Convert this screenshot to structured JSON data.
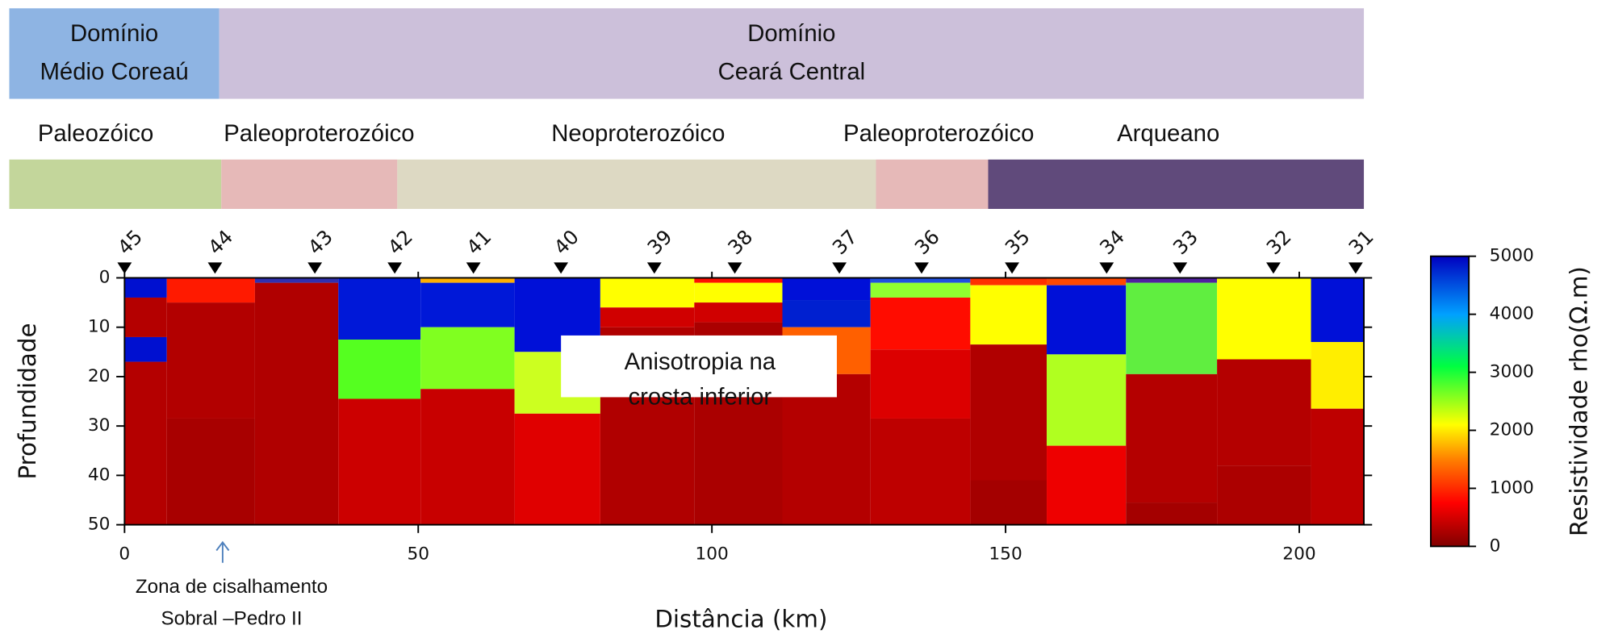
{
  "chart_data": {
    "type": "resistivity-section",
    "domains": [
      {
        "lines": [
          "Domínio",
          "Médio Coreaú"
        ],
        "color": "#8eb4e3"
      },
      {
        "lines": [
          "Domínio",
          "Ceará Central"
        ],
        "color": "#ccc0da"
      }
    ],
    "ages": [
      {
        "label": "Paleozóico",
        "color": "#c3d69b"
      },
      {
        "label": "Paleoproterozóico",
        "color": "#e6b9b8"
      },
      {
        "label": "Neoproterozóico",
        "color": "#ddd9c3"
      },
      {
        "label": "Paleoproterozóico",
        "color": "#e6b9b8"
      },
      {
        "label": "Arqueano",
        "color": "#604a7b"
      }
    ],
    "stations": [
      {
        "label": "45",
        "x": 0
      },
      {
        "label": "44",
        "x": 15.4
      },
      {
        "label": "43",
        "x": 32.4
      },
      {
        "label": "42",
        "x": 46
      },
      {
        "label": "41",
        "x": 59.4
      },
      {
        "label": "40",
        "x": 74.3
      },
      {
        "label": "39",
        "x": 90.2
      },
      {
        "label": "38",
        "x": 103.9
      },
      {
        "label": "37",
        "x": 121.7
      },
      {
        "label": "36",
        "x": 135.7
      },
      {
        "label": "35",
        "x": 151.1
      },
      {
        "label": "34",
        "x": 167.2
      },
      {
        "label": "33",
        "x": 179.7
      },
      {
        "label": "32",
        "x": 195.6
      },
      {
        "label": "31",
        "x": 209.6
      }
    ],
    "columns": [
      {
        "x0": 0,
        "x1": 7.2,
        "layers": [
          {
            "top": 0,
            "bottom": 4,
            "rho": 5000,
            "color": "#0010d0"
          },
          {
            "top": 4,
            "bottom": 12,
            "rho": 150,
            "color": "#b40000"
          },
          {
            "top": 12,
            "bottom": 17,
            "rho": 5000,
            "color": "#0010d0"
          },
          {
            "top": 17,
            "bottom": 50,
            "rho": 150,
            "color": "#b40000"
          }
        ]
      },
      {
        "x0": 7.2,
        "x1": 22.2,
        "layers": [
          {
            "top": 0,
            "bottom": 5,
            "rho": 800,
            "color": "#ff1a00"
          },
          {
            "top": 5,
            "bottom": 28.5,
            "rho": 150,
            "color": "#b20000"
          },
          {
            "top": 28.5,
            "bottom": 50,
            "rho": 100,
            "color": "#a80000"
          }
        ]
      },
      {
        "x0": 22.2,
        "x1": 36.4,
        "layers": [
          {
            "top": 0,
            "bottom": 1,
            "rho": 4500,
            "color": "#3030b0"
          },
          {
            "top": 1,
            "bottom": 50,
            "rho": 150,
            "color": "#b00000"
          }
        ]
      },
      {
        "x0": 36.4,
        "x1": 50.4,
        "layers": [
          {
            "top": 0,
            "bottom": 12.5,
            "rho": 5000,
            "color": "#0018d8"
          },
          {
            "top": 12.5,
            "bottom": 24.5,
            "rho": 3300,
            "color": "#55ff20"
          },
          {
            "top": 24.5,
            "bottom": 50,
            "rho": 300,
            "color": "#cc0000"
          }
        ]
      },
      {
        "x0": 50.4,
        "x1": 66.4,
        "layers": [
          {
            "top": 0,
            "bottom": 1,
            "rho": 1800,
            "color": "#ffb000"
          },
          {
            "top": 1,
            "bottom": 10,
            "rho": 5000,
            "color": "#0018d8"
          },
          {
            "top": 10,
            "bottom": 22.5,
            "rho": 2900,
            "color": "#80ff20"
          },
          {
            "top": 22.5,
            "bottom": 50,
            "rho": 300,
            "color": "#c80000"
          }
        ]
      },
      {
        "x0": 66.4,
        "x1": 81,
        "layers": [
          {
            "top": 0,
            "bottom": 15,
            "rho": 5000,
            "color": "#0010d8"
          },
          {
            "top": 15,
            "bottom": 27.5,
            "rho": 2400,
            "color": "#ccff20"
          },
          {
            "top": 27.5,
            "bottom": 50,
            "rho": 600,
            "color": "#e00000"
          }
        ]
      },
      {
        "x0": 81,
        "x1": 97,
        "layers": [
          {
            "top": 0,
            "bottom": 6,
            "rho": 2100,
            "color": "#ffff00"
          },
          {
            "top": 6,
            "bottom": 10,
            "rho": 400,
            "color": "#d00000"
          },
          {
            "top": 10,
            "bottom": 50,
            "rho": 150,
            "color": "#b00000"
          }
        ]
      },
      {
        "x0": 97,
        "x1": 112,
        "layers": [
          {
            "top": 0,
            "bottom": 1,
            "rho": 800,
            "color": "#ff1000"
          },
          {
            "top": 1,
            "bottom": 5,
            "rho": 2100,
            "color": "#ffff00"
          },
          {
            "top": 5,
            "bottom": 9,
            "rho": 400,
            "color": "#d00000"
          },
          {
            "top": 9,
            "bottom": 50,
            "rho": 100,
            "color": "#aa0000"
          }
        ]
      },
      {
        "x0": 112,
        "x1": 127,
        "layers": [
          {
            "top": 0,
            "bottom": 4.5,
            "rho": 5000,
            "color": "#0010d8"
          },
          {
            "top": 4.5,
            "bottom": 10,
            "rho": 4800,
            "color": "#0020d0"
          },
          {
            "top": 10,
            "bottom": 19.5,
            "rho": 1200,
            "color": "#ff6000"
          },
          {
            "top": 19.5,
            "bottom": 50,
            "rho": 150,
            "color": "#b40000"
          }
        ]
      },
      {
        "x0": 127,
        "x1": 144,
        "layers": [
          {
            "top": 0,
            "bottom": 1,
            "rho": 4500,
            "color": "#2050e0"
          },
          {
            "top": 1,
            "bottom": 4,
            "rho": 2700,
            "color": "#90ff30"
          },
          {
            "top": 4,
            "bottom": 14.5,
            "rho": 800,
            "color": "#ff0c00"
          },
          {
            "top": 14.5,
            "bottom": 28.5,
            "rho": 500,
            "color": "#dc0000"
          },
          {
            "top": 28.5,
            "bottom": 50,
            "rho": 200,
            "color": "#be0000"
          }
        ]
      },
      {
        "x0": 144,
        "x1": 157,
        "layers": [
          {
            "top": 0,
            "bottom": 1.5,
            "rho": 1000,
            "color": "#ff3000"
          },
          {
            "top": 1.5,
            "bottom": 13.5,
            "rho": 2100,
            "color": "#ffff00"
          },
          {
            "top": 13.5,
            "bottom": 41,
            "rho": 150,
            "color": "#b00000"
          },
          {
            "top": 41,
            "bottom": 50,
            "rho": 100,
            "color": "#a40000"
          }
        ]
      },
      {
        "x0": 157,
        "x1": 170.5,
        "layers": [
          {
            "top": 0,
            "bottom": 1.5,
            "rho": 1100,
            "color": "#ff4800"
          },
          {
            "top": 1.5,
            "bottom": 15.5,
            "rho": 5000,
            "color": "#0010d8"
          },
          {
            "top": 15.5,
            "bottom": 34,
            "rho": 2500,
            "color": "#b0ff20"
          },
          {
            "top": 34,
            "bottom": 50,
            "rho": 700,
            "color": "#ee0000"
          }
        ]
      },
      {
        "x0": 170.5,
        "x1": 186,
        "layers": [
          {
            "top": 0,
            "bottom": 1,
            "rho": 4500,
            "color": "#5020a0"
          },
          {
            "top": 1,
            "bottom": 19.5,
            "rho": 3200,
            "color": "#60ee40"
          },
          {
            "top": 19.5,
            "bottom": 45.5,
            "rho": 150,
            "color": "#b40000"
          },
          {
            "top": 45.5,
            "bottom": 50,
            "rho": 100,
            "color": "#a40000"
          }
        ]
      },
      {
        "x0": 186,
        "x1": 202,
        "layers": [
          {
            "top": 0,
            "bottom": 16.5,
            "rho": 2100,
            "color": "#ffff00"
          },
          {
            "top": 16.5,
            "bottom": 38,
            "rho": 150,
            "color": "#b40000"
          },
          {
            "top": 38,
            "bottom": 50,
            "rho": 120,
            "color": "#ac0000"
          }
        ]
      },
      {
        "x0": 202,
        "x1": 211,
        "layers": [
          {
            "top": 0,
            "bottom": 13,
            "rho": 5000,
            "color": "#0010d8"
          },
          {
            "top": 13,
            "bottom": 26.5,
            "rho": 2100,
            "color": "#ffee00"
          },
          {
            "top": 26.5,
            "bottom": 50,
            "rho": 200,
            "color": "#be0000"
          }
        ]
      }
    ],
    "xlim": [
      0,
      211
    ],
    "xticks": [
      0,
      50,
      100,
      150,
      200
    ],
    "ylim": [
      0,
      50
    ],
    "yticks": [
      0,
      10,
      20,
      30,
      40,
      50
    ],
    "xlabel": "Distância (km)",
    "ylabel": "Profundidade",
    "colorbar": {
      "lim": [
        0,
        5000
      ],
      "ticks": [
        0,
        1000,
        2000,
        3000,
        4000,
        5000
      ],
      "label": "Resistividade rho(Ω.m)"
    },
    "annotations": [
      {
        "lines": [
          "Anisotropia na",
          "crosta inferior"
        ]
      },
      {
        "lines": [
          "Zona de cisalhamento",
          "Sobral –Pedro II"
        ],
        "x": 16.7
      }
    ]
  }
}
